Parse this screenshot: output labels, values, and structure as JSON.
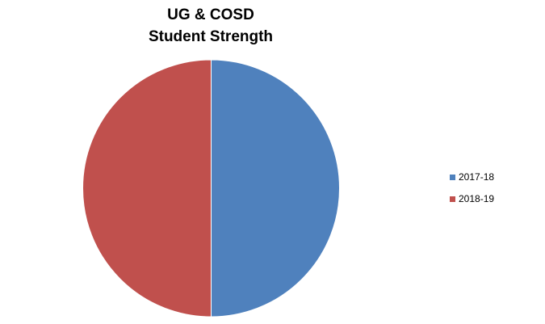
{
  "chart_data": {
    "type": "pie",
    "title": [
      "UG & COSD",
      "Student Strength"
    ],
    "categories": [
      "2017-18",
      "2018-19"
    ],
    "values": [
      50,
      50
    ],
    "colors": [
      "#4F81BD",
      "#C0504D"
    ],
    "legend": "right"
  }
}
